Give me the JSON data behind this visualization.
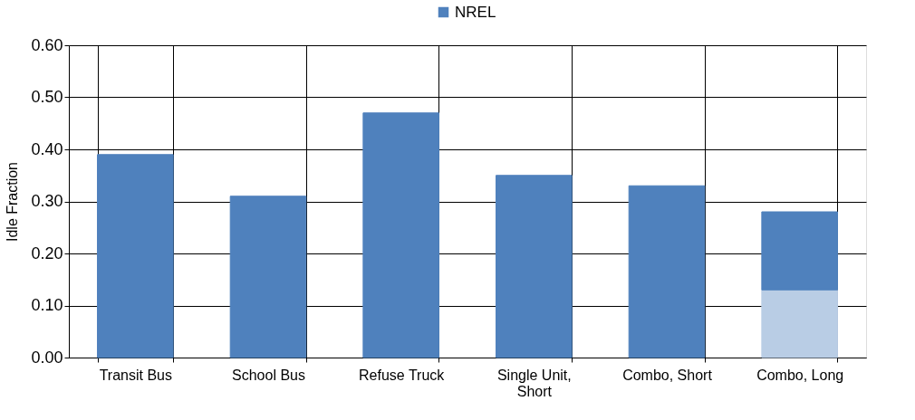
{
  "chart_data": {
    "type": "bar",
    "stacked": true,
    "ylabel": "Idle Fraction",
    "categories": [
      "Transit Bus",
      "School Bus",
      "Refuse Truck",
      "Single Unit,\nShort",
      "Combo, Short",
      "Combo, Long"
    ],
    "series": [
      {
        "color": "#b9cde5",
        "values": [
          null,
          null,
          null,
          null,
          null,
          0.13
        ]
      },
      {
        "name": "NREL",
        "color": "#4f81bd",
        "values": [
          0.39,
          0.31,
          0.47,
          0.35,
          0.33,
          0.15
        ]
      }
    ],
    "ylim": [
      0,
      0.6
    ],
    "yticks": [
      {
        "value": 0,
        "label": "0.00"
      },
      {
        "value": 0.1,
        "label": "0.10"
      },
      {
        "value": 0.2,
        "label": "0.20"
      },
      {
        "value": 0.3,
        "label": "0.30"
      },
      {
        "value": 0.4,
        "label": "0.40"
      },
      {
        "value": 0.5,
        "label": "0.50"
      },
      {
        "value": 0.6,
        "label": "0.60"
      }
    ],
    "grid": true,
    "legend": "top"
  }
}
